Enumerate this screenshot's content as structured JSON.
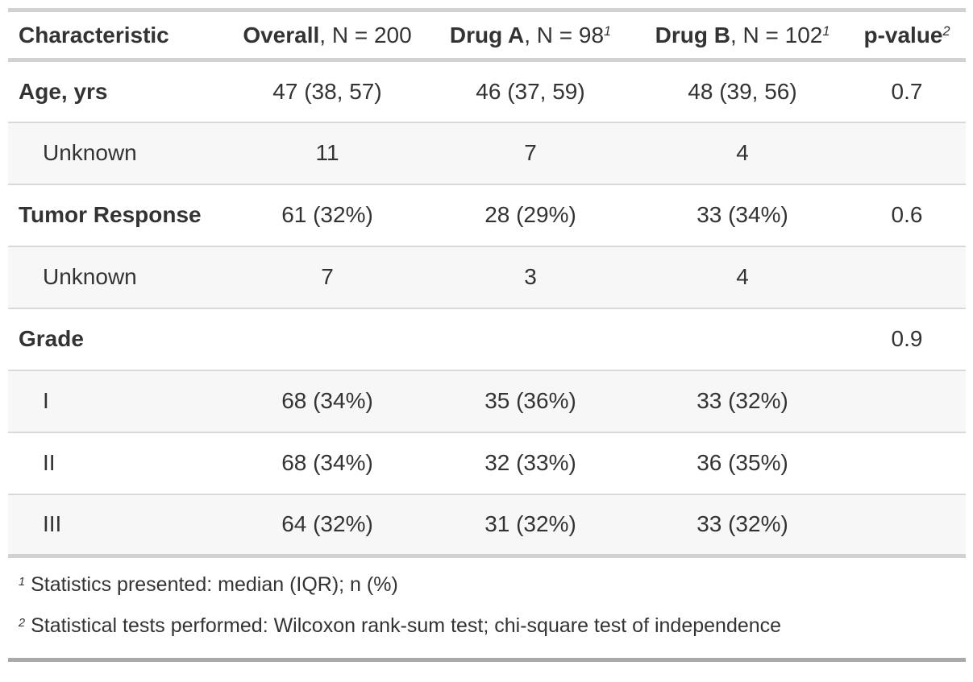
{
  "chart_data": {
    "type": "table",
    "columns": [
      {
        "label": "Characteristic",
        "n_label": "",
        "footnote_mark": ""
      },
      {
        "label": "Overall",
        "n_label": ", N = 200",
        "footnote_mark": ""
      },
      {
        "label": "Drug A",
        "n_label": ", N = 98",
        "footnote_mark": "1"
      },
      {
        "label": "Drug B",
        "n_label": ", N = 102",
        "footnote_mark": "1"
      },
      {
        "label": "p-value",
        "n_label": "",
        "footnote_mark": "2"
      }
    ],
    "rows": [
      {
        "label": "Age, yrs",
        "overall": "47 (38, 57)",
        "drug_a": "46 (37, 59)",
        "drug_b": "48 (39, 56)",
        "p_value": "0.7"
      },
      {
        "label": "Unknown",
        "overall": "11",
        "drug_a": "7",
        "drug_b": "4",
        "p_value": ""
      },
      {
        "label": "Tumor Response",
        "overall": "61 (32%)",
        "drug_a": "28 (29%)",
        "drug_b": "33 (34%)",
        "p_value": "0.6"
      },
      {
        "label": "Unknown",
        "overall": "7",
        "drug_a": "3",
        "drug_b": "4",
        "p_value": ""
      },
      {
        "label": "Grade",
        "overall": "",
        "drug_a": "",
        "drug_b": "",
        "p_value": "0.9"
      },
      {
        "label": "I",
        "overall": "68 (34%)",
        "drug_a": "35 (36%)",
        "drug_b": "33 (32%)",
        "p_value": ""
      },
      {
        "label": "II",
        "overall": "68 (34%)",
        "drug_a": "32 (33%)",
        "drug_b": "36 (35%)",
        "p_value": ""
      },
      {
        "label": "III",
        "overall": "64 (32%)",
        "drug_a": "31 (32%)",
        "drug_b": "33 (32%)",
        "p_value": ""
      }
    ],
    "footnotes": [
      {
        "mark": "1",
        "text": "Statistics presented: median (IQR); n (%)"
      },
      {
        "mark": "2",
        "text": "Statistical tests performed: Wilcoxon rank-sum test; chi-square test of independence"
      }
    ],
    "layout_hints": {
      "stripe_rows": "alternating, starting with second body row",
      "bold_labels": [
        "Age, yrs",
        "Tumor Response",
        "Grade"
      ],
      "indented_labels": [
        "Unknown",
        "I",
        "II",
        "III"
      ]
    }
  },
  "colors": {
    "text": "#333333",
    "stripe_bg": "#f7f7f7",
    "light_border": "#d2d2d2",
    "row_divider": "#d9d9d9",
    "bottom_border": "#a9a9a9",
    "background": "#ffffff"
  }
}
